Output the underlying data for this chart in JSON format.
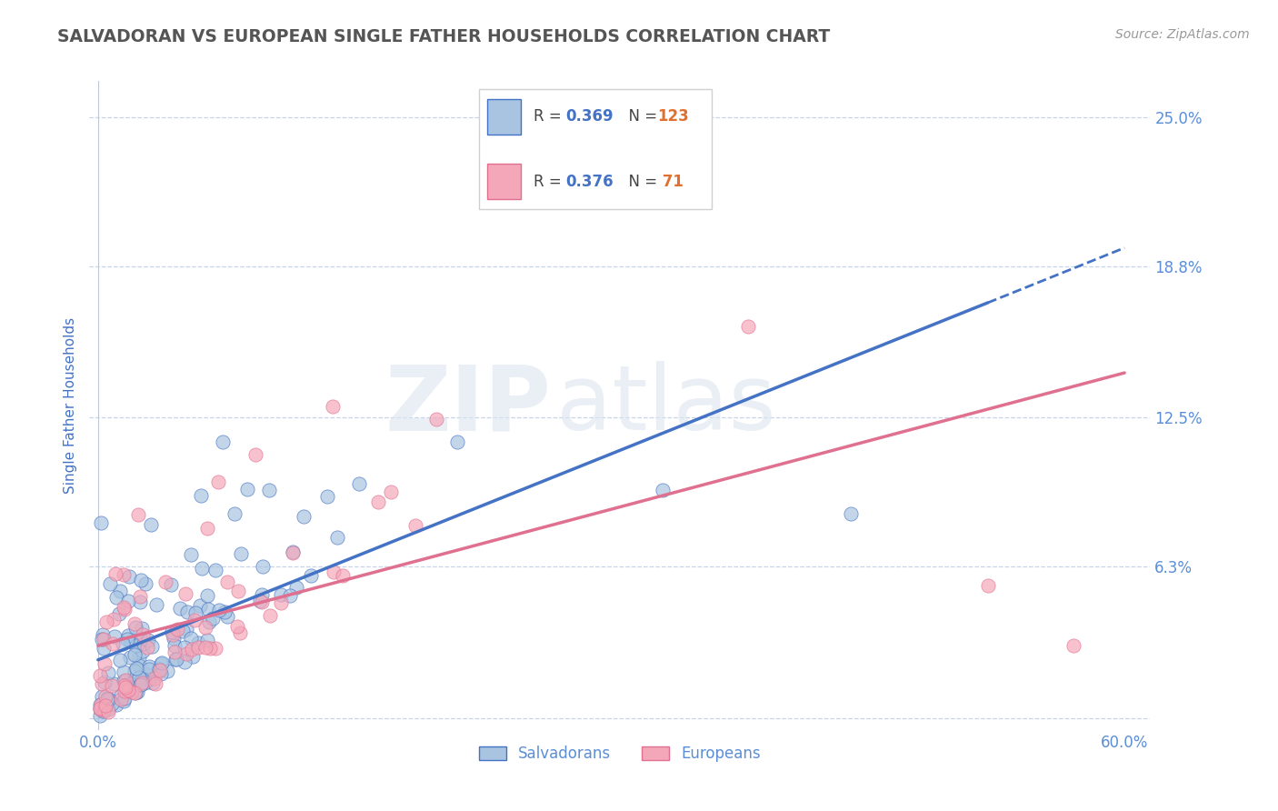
{
  "title": "SALVADORAN VS EUROPEAN SINGLE FATHER HOUSEHOLDS CORRELATION CHART",
  "source": "Source: ZipAtlas.com",
  "ylabel": "Single Father Households",
  "legend_salvadoran": "Salvadorans",
  "legend_european": "Europeans",
  "R_salvadoran": 0.369,
  "N_salvadoran": 123,
  "R_european": 0.376,
  "N_european": 71,
  "xlim": [
    -0.005,
    0.615
  ],
  "ylim": [
    -0.005,
    0.265
  ],
  "yticks": [
    0.0,
    0.063,
    0.125,
    0.188,
    0.25
  ],
  "ytick_labels": [
    "",
    "6.3%",
    "12.5%",
    "18.8%",
    "25.0%"
  ],
  "xticks": [
    0.0,
    0.1,
    0.2,
    0.3,
    0.4,
    0.5,
    0.6
  ],
  "xtick_labels": [
    "0.0%",
    "",
    "",
    "",
    "",
    "",
    "60.0%"
  ],
  "color_salvadoran": "#a8c4e0",
  "color_european": "#f4a7b9",
  "color_line_salvadoran": "#4472c4",
  "color_line_european": "#e07090",
  "background_color": "#ffffff",
  "watermark_zip": "ZIP",
  "watermark_atlas": "atlas",
  "title_color": "#555555",
  "axis_label_color": "#4472c4",
  "tick_label_color": "#5b8ed6",
  "grid_color": "#c8d4e8",
  "legend_R_color": "#4472c4",
  "legend_N_color": "#e07030",
  "blue_line_max_x": 0.52,
  "pink_line_max_x": 0.6
}
